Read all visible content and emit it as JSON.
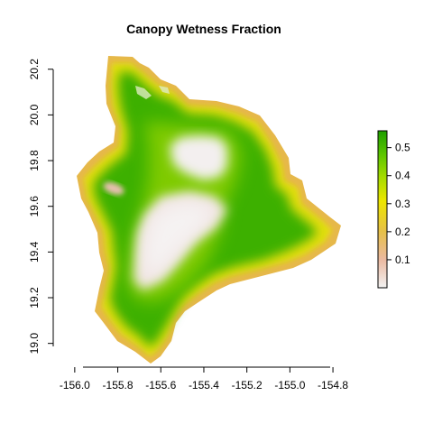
{
  "title": "Canopy Wetness Fraction",
  "colors": {
    "ramp": [
      "#F2F2F2",
      "#EBB9A0",
      "#E6C047",
      "#EDE600",
      "#A8DC00",
      "#5BC500",
      "#1E9F00"
    ],
    "ocean": "#ffffff"
  },
  "chart_data": {
    "type": "heatmap",
    "title": "Canopy Wetness Fraction",
    "xlabel": "",
    "ylabel": "",
    "xlim": [
      -156.1,
      -154.75
    ],
    "ylim": [
      18.9,
      20.27
    ],
    "x_ticks": [
      -156.0,
      -155.8,
      -155.6,
      -155.4,
      -155.2,
      -155.0,
      -154.8
    ],
    "x_tick_labels": [
      "-156.0",
      "-155.8",
      "-155.6",
      "-155.4",
      "-155.2",
      "-155.0",
      "-154.8"
    ],
    "y_ticks": [
      19.0,
      19.2,
      19.4,
      19.6,
      19.8,
      20.0,
      20.2
    ],
    "y_tick_labels": [
      "19.0",
      "19.2",
      "19.4",
      "19.6",
      "19.8",
      "20.0",
      "20.2"
    ],
    "legend": {
      "placement": "right",
      "min": 0.0,
      "max": 0.56,
      "ticks": [
        0.1,
        0.2,
        0.3,
        0.4,
        0.5
      ],
      "tick_labels": [
        "0.1",
        "0.2",
        "0.3",
        "0.4",
        "0.5"
      ]
    },
    "regions": [
      {
        "name": "island_outline",
        "value_range": [
          0.18,
          0.22
        ]
      },
      {
        "name": "forest_belt",
        "value_range": [
          0.45,
          0.55
        ]
      },
      {
        "name": "mauna_loa_summit",
        "value": 0.02
      },
      {
        "name": "mauna_kea_summit",
        "value": 0.02
      },
      {
        "name": "hualalai_summit",
        "value": 0.12
      }
    ]
  }
}
